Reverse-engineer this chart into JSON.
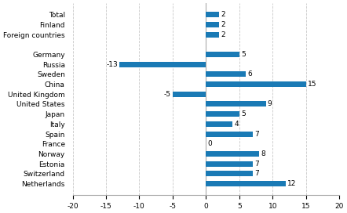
{
  "categories": [
    "Total",
    "Finland",
    "Foreign countries",
    "",
    "Germany",
    "Russia",
    "Sweden",
    "China",
    "United Kingdom",
    "United States",
    "Japan",
    "Italy",
    "Spain",
    "France",
    "Norway",
    "Estonia",
    "Switzerland",
    "Netherlands"
  ],
  "values": [
    2,
    2,
    2,
    null,
    5,
    -13,
    6,
    15,
    -5,
    9,
    5,
    4,
    7,
    0,
    8,
    7,
    7,
    12
  ],
  "bar_color": "#1a7ab5",
  "xlim": [
    -20,
    20
  ],
  "xticks": [
    -20,
    -15,
    -10,
    -5,
    0,
    5,
    10,
    15,
    20
  ],
  "background_color": "#ffffff",
  "grid_color": "#c8c8c8",
  "label_fontsize": 6.5,
  "value_fontsize": 6.5,
  "bar_height": 0.55
}
